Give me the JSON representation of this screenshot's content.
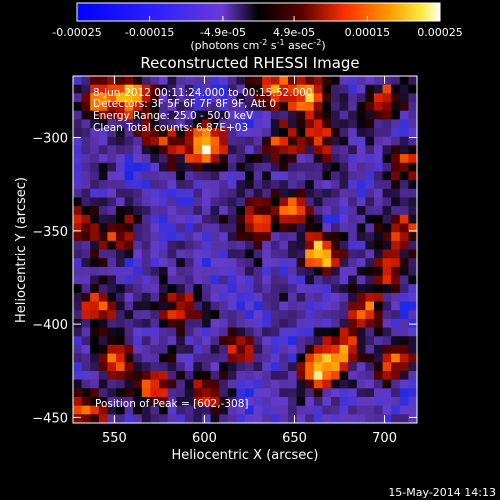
{
  "chart_data": {
    "type": "heatmap",
    "title": "Reconstructed RHESSI Image",
    "xlabel": "Heliocentric X (arcsec)",
    "ylabel": "Heliocentric Y (arcsec)",
    "xlim": [
      527,
      718
    ],
    "ylim": [
      -453,
      -267
    ],
    "xticks": [
      550,
      600,
      650,
      700
    ],
    "xtick_labels": [
      "550",
      "600",
      "650",
      "700"
    ],
    "yticks": [
      -300,
      -350,
      -400,
      -450
    ],
    "ytick_labels": [
      "−300",
      "−350",
      "−400",
      "−450"
    ],
    "colorbar": {
      "range": [
        -0.00025,
        0.00025
      ],
      "tick_values": [
        -0.00025,
        -0.00015,
        -4.9e-05,
        4.9e-05,
        0.00015,
        0.00025
      ],
      "tick_labels": [
        "-0.00025",
        "-0.00015",
        "-4.9e-05",
        "4.9e-05",
        "0.00015",
        "0.00025"
      ],
      "label_main": "(photons cm",
      "label_exp1": "-2",
      "label_mid": " s",
      "label_exp2": "-1",
      "label_mid2": " asec",
      "label_exp3": "-2",
      "label_end": ")"
    },
    "annotations": {
      "time_range": "8-Jun-2012 00:11:24.000 to 00:15:52.000",
      "detectors": "Detectors: 3F 5F 6F 7F 8F 9F, Att 0",
      "energy": "Energy Range: 25.0 - 50.0 keV",
      "clean": "Clean     Total counts: 6.87E+03",
      "peak": "Position of Peak = [602,-308]"
    },
    "peak": [
      602,
      -308
    ],
    "hot_spots": [
      {
        "x": 601,
        "y": -306,
        "amp": 1.0
      },
      {
        "x": 560,
        "y": -277,
        "amp": 0.85
      },
      {
        "x": 541,
        "y": -283,
        "amp": 0.7
      },
      {
        "x": 639,
        "y": -272,
        "amp": 0.75
      },
      {
        "x": 658,
        "y": -277,
        "amp": 0.8
      },
      {
        "x": 700,
        "y": -280,
        "amp": 0.65
      },
      {
        "x": 578,
        "y": -301,
        "amp": 0.6
      },
      {
        "x": 641,
        "y": -306,
        "amp": 0.6
      },
      {
        "x": 665,
        "y": -299,
        "amp": 0.65
      },
      {
        "x": 627,
        "y": -344,
        "amp": 0.75
      },
      {
        "x": 649,
        "y": -336,
        "amp": 0.55
      },
      {
        "x": 664,
        "y": -361,
        "amp": 0.9
      },
      {
        "x": 710,
        "y": -348,
        "amp": 0.7
      },
      {
        "x": 700,
        "y": -371,
        "amp": 0.6
      },
      {
        "x": 552,
        "y": -352,
        "amp": 0.55
      },
      {
        "x": 540,
        "y": -391,
        "amp": 0.8
      },
      {
        "x": 553,
        "y": -420,
        "amp": 0.75
      },
      {
        "x": 585,
        "y": -391,
        "amp": 0.7
      },
      {
        "x": 573,
        "y": -434,
        "amp": 0.65
      },
      {
        "x": 618,
        "y": -412,
        "amp": 0.55
      },
      {
        "x": 601,
        "y": -435,
        "amp": 0.5
      },
      {
        "x": 664,
        "y": -426,
        "amp": 0.9
      },
      {
        "x": 679,
        "y": -412,
        "amp": 0.65
      },
      {
        "x": 704,
        "y": -420,
        "amp": 0.55
      },
      {
        "x": 536,
        "y": -446,
        "amp": 0.7
      },
      {
        "x": 689,
        "y": -392,
        "amp": 0.5
      },
      {
        "x": 710,
        "y": -313,
        "amp": 0.5
      },
      {
        "x": 532,
        "y": -345,
        "amp": 0.55
      }
    ]
  },
  "footer": {
    "date": "15-May-2014 14:13"
  }
}
